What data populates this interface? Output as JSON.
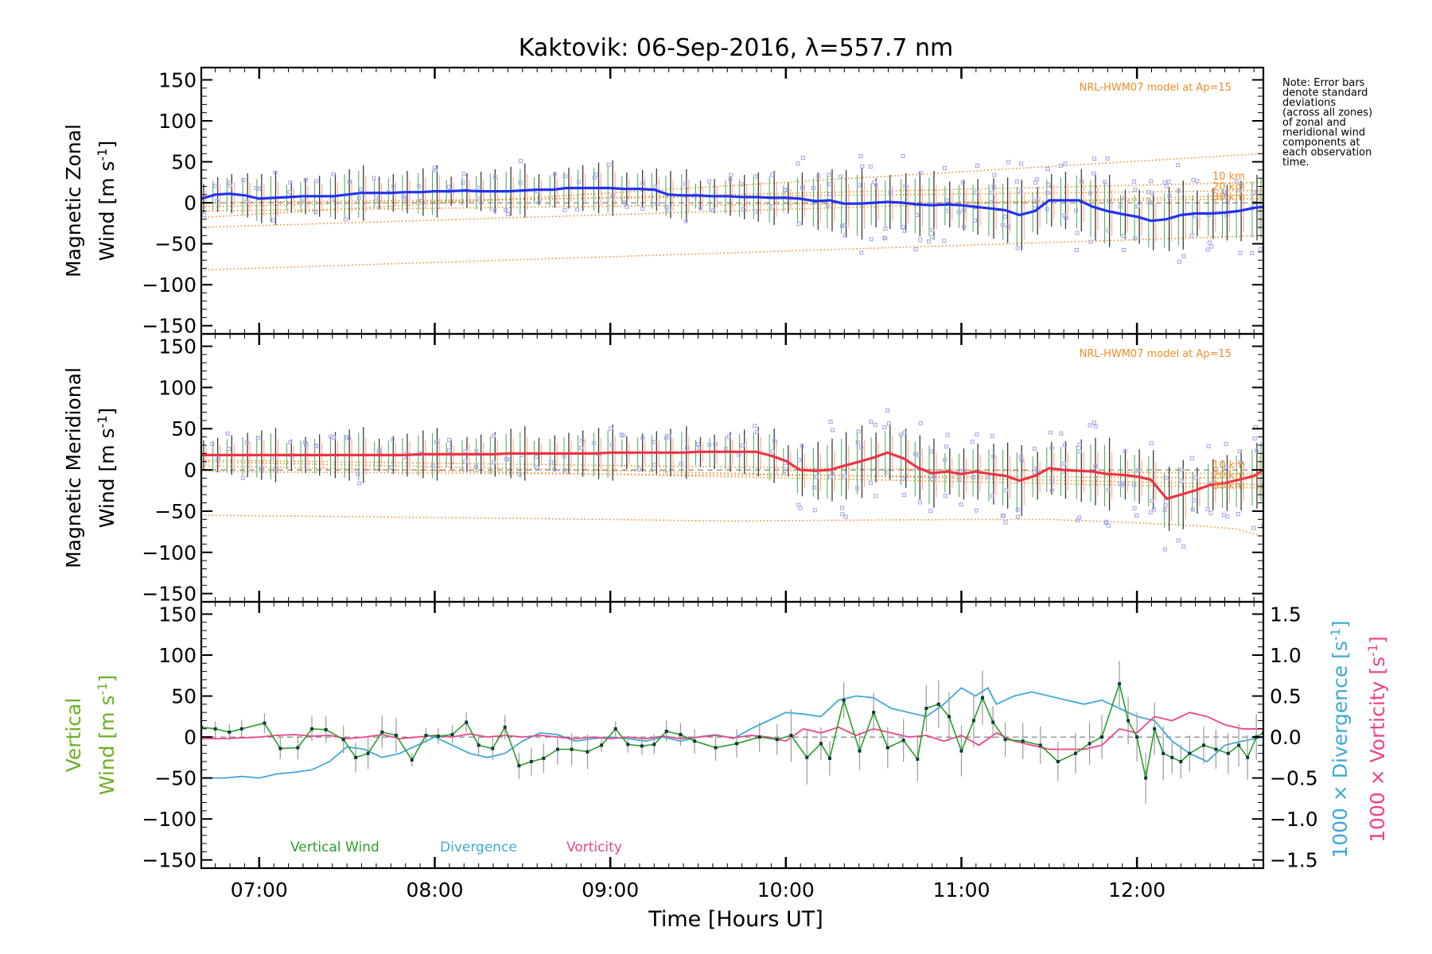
{
  "colors": {
    "zonal_line": "#2233ee",
    "meridional_line": "#ee3344",
    "model": "#f28c28",
    "vertical": "#2a9d2a",
    "vertical_label": "#6ab023",
    "divergence": "#40a8d8",
    "vorticity": "#ee4488",
    "samples": "#a9a9e8",
    "error_bar": "#3a3a3a"
  },
  "chart_data": {
    "type": "line",
    "title": "Kaktovik: 06-Sep-2016, λ=557.7 nm",
    "xlabel": "Time [Hours UT]",
    "x_unit": "hours UT",
    "x_ticks": [
      "07:00",
      "08:00",
      "09:00",
      "10:00",
      "11:00",
      "12:00"
    ],
    "x_tick_values": [
      7,
      8,
      9,
      10,
      11,
      12
    ],
    "xlim": [
      6.67,
      12.72
    ],
    "note": "Note: Error bars denote standard deviations (across all zones) of zonal and meridional wind components at each observation time.",
    "note_lines": [
      "Note: Error bars",
      "denote standard",
      "deviations",
      "(across all zones)",
      "of zonal and",
      "meridional wind",
      "components at",
      "each observation",
      "time."
    ],
    "panels": [
      {
        "ylabel_line1": "Magnetic Zonal",
        "ylabel_line2": "Wind [m s",
        "ylabel_sup": "-1",
        "ylabel_close": "]",
        "ylim": [
          -160,
          165
        ],
        "y_ticks": [
          "150",
          "100",
          "50",
          "0",
          "−50",
          "−100",
          "−150"
        ],
        "y_tick_values": [
          150,
          100,
          50,
          0,
          -50,
          -100,
          -150
        ],
        "model_label": "NRL-HWM07 model at Ap=15",
        "altitude_labels": [
          "10 km",
          "20 km",
          "30 km"
        ],
        "series": [
          {
            "name": "Magnetic Zonal Wind",
            "x": [
              6.67,
              6.75,
              6.83,
              6.92,
              7.0,
              7.08,
              7.17,
              7.25,
              7.33,
              7.42,
              7.5,
              7.58,
              7.67,
              7.75,
              7.83,
              7.92,
              8.0,
              8.08,
              8.17,
              8.25,
              8.33,
              8.42,
              8.5,
              8.58,
              8.67,
              8.75,
              8.83,
              8.92,
              9.0,
              9.08,
              9.17,
              9.25,
              9.33,
              9.42,
              9.5,
              9.58,
              9.67,
              9.75,
              9.83,
              9.92,
              10.0,
              10.08,
              10.17,
              10.25,
              10.33,
              10.42,
              10.5,
              10.58,
              10.67,
              10.75,
              10.83,
              10.92,
              11.0,
              11.08,
              11.17,
              11.25,
              11.33,
              11.42,
              11.5,
              11.58,
              11.67,
              11.75,
              11.83,
              11.92,
              12.0,
              12.08,
              12.17,
              12.25,
              12.33,
              12.42,
              12.5,
              12.58,
              12.67,
              12.72
            ],
            "values": [
              5,
              10,
              11,
              9,
              5,
              6,
              7,
              8,
              8,
              8,
              10,
              12,
              12,
              12,
              13,
              13,
              14,
              14,
              15,
              14,
              14,
              14,
              15,
              16,
              16,
              18,
              18,
              18,
              18,
              17,
              17,
              16,
              10,
              9,
              9,
              8,
              8,
              7,
              7,
              6,
              6,
              5,
              2,
              3,
              -1,
              -1,
              0,
              1,
              0,
              -2,
              -3,
              -2,
              -3,
              -5,
              -7,
              -9,
              -15,
              -10,
              3,
              3,
              3,
              -5,
              -10,
              -14,
              -17,
              -22,
              -20,
              -15,
              -13,
              -13,
              -12,
              -10,
              -6,
              -5
            ]
          }
        ]
      },
      {
        "ylabel_line1": "Magnetic Meridional",
        "ylabel_line2": "Wind [m s",
        "ylabel_sup": "-1",
        "ylabel_close": "]",
        "ylim": [
          -160,
          165
        ],
        "y_ticks": [
          "150",
          "100",
          "50",
          "0",
          "−50",
          "−100",
          "−150"
        ],
        "y_tick_values": [
          150,
          100,
          50,
          0,
          -50,
          -100,
          -150
        ],
        "model_label": "NRL-HWM07 model at Ap=15",
        "altitude_labels": [
          "10 km",
          "20 km",
          "30 km"
        ],
        "series": [
          {
            "name": "Magnetic Meridional Wind",
            "x": [
              6.67,
              6.75,
              6.83,
              6.92,
              7.0,
              7.08,
              7.17,
              7.25,
              7.33,
              7.42,
              7.5,
              7.58,
              7.67,
              7.75,
              7.83,
              7.92,
              8.0,
              8.08,
              8.17,
              8.25,
              8.33,
              8.42,
              8.5,
              8.58,
              8.67,
              8.75,
              8.83,
              8.92,
              9.0,
              9.08,
              9.17,
              9.25,
              9.33,
              9.42,
              9.5,
              9.58,
              9.67,
              9.75,
              9.83,
              9.92,
              10.0,
              10.08,
              10.17,
              10.25,
              10.33,
              10.42,
              10.5,
              10.58,
              10.67,
              10.75,
              10.83,
              10.92,
              11.0,
              11.08,
              11.17,
              11.25,
              11.33,
              11.42,
              11.5,
              11.58,
              11.67,
              11.75,
              11.83,
              11.92,
              12.0,
              12.08,
              12.17,
              12.25,
              12.33,
              12.42,
              12.5,
              12.58,
              12.67,
              12.72
            ],
            "values": [
              18,
              18,
              18,
              18,
              18,
              18,
              18,
              18,
              18,
              18,
              18,
              18,
              18,
              18,
              18,
              19,
              19,
              19,
              19,
              19,
              19,
              20,
              20,
              20,
              20,
              20,
              20,
              20,
              21,
              21,
              21,
              21,
              21,
              21,
              22,
              22,
              22,
              22,
              22,
              17,
              11,
              0,
              -1,
              0,
              5,
              10,
              15,
              21,
              14,
              3,
              -4,
              -2,
              -5,
              -2,
              -5,
              -7,
              -13,
              -7,
              2,
              0,
              -1,
              -2,
              -5,
              -6,
              -8,
              -12,
              -35,
              -30,
              -25,
              -18,
              -16,
              -12,
              -7,
              0
            ]
          }
        ]
      },
      {
        "ylabel_line1": "Vertical",
        "ylabel_line2": "Wind [m s",
        "ylabel_sup": "-1",
        "ylabel_close": "]",
        "ylim": [
          -160,
          165
        ],
        "y_ticks": [
          "150",
          "100",
          "50",
          "0",
          "−50",
          "−100",
          "−150"
        ],
        "y_tick_values": [
          150,
          100,
          50,
          0,
          -50,
          -100,
          -150
        ],
        "y2_ticks": [
          "1.5",
          "1.0",
          "0.5",
          "0.0",
          "−0.5",
          "−1.0",
          "−1.5"
        ],
        "y2_tick_values": [
          1.5,
          1.0,
          0.5,
          0.0,
          -0.5,
          -1.0,
          -1.5
        ],
        "y2_ylim": [
          -1.6,
          1.65
        ],
        "y2_label_divergence": "1000 × Divergence [s",
        "y2_label_vorticity": "1000 × Vorticity [s",
        "y2_label_sup": "-1",
        "y2_label_close": "]",
        "legend": [
          "Vertical Wind",
          "Divergence",
          "Vorticity"
        ],
        "series": [
          {
            "name": "Vertical Wind",
            "x": [
              6.67,
              6.75,
              6.83,
              6.9,
              7.03,
              7.12,
              7.22,
              7.3,
              7.38,
              7.48,
              7.55,
              7.62,
              7.7,
              7.78,
              7.87,
              7.95,
              8.02,
              8.1,
              8.18,
              8.25,
              8.33,
              8.4,
              8.48,
              8.55,
              8.62,
              8.7,
              8.78,
              8.87,
              8.95,
              9.03,
              9.1,
              9.18,
              9.25,
              9.32,
              9.4,
              9.48,
              9.6,
              9.72,
              9.85,
              9.95,
              10.03,
              10.12,
              10.2,
              10.25,
              10.33,
              10.42,
              10.5,
              10.58,
              10.67,
              10.75,
              10.8,
              10.87,
              10.93,
              11.0,
              11.07,
              11.12,
              11.18,
              11.25,
              11.35,
              11.45,
              11.55,
              11.65,
              11.73,
              11.8,
              11.9,
              11.95,
              12.0,
              12.05,
              12.1,
              12.15,
              12.2,
              12.25,
              12.3,
              12.38,
              12.45,
              12.52,
              12.58,
              12.63,
              12.68,
              12.72
            ],
            "values": [
              12,
              10,
              6,
              10,
              17,
              -14,
              -13,
              10,
              9,
              -3,
              -25,
              -20,
              6,
              2,
              -28,
              2,
              1,
              3,
              18,
              -10,
              -14,
              12,
              -35,
              -30,
              -26,
              -15,
              -15,
              -18,
              -10,
              10,
              -9,
              -11,
              -9,
              7,
              3,
              -5,
              -13,
              -8,
              0,
              -3,
              2,
              -25,
              -8,
              -26,
              45,
              -17,
              30,
              -13,
              -4,
              -27,
              35,
              40,
              25,
              -17,
              20,
              48,
              18,
              -3,
              -5,
              -10,
              -30,
              -20,
              -8,
              0,
              65,
              20,
              0,
              -50,
              10,
              -20,
              -25,
              -30,
              -20,
              -10,
              -15,
              -20,
              -10,
              -25,
              0,
              5
            ]
          },
          {
            "name": "Divergence",
            "axis": "right",
            "x": [
              6.67,
              6.8,
              6.9,
              7.0,
              7.1,
              7.2,
              7.3,
              7.4,
              7.5,
              7.6,
              7.7,
              7.8,
              7.9,
              8.0,
              8.1,
              8.2,
              8.3,
              8.4,
              8.5,
              8.6,
              8.7,
              8.8,
              8.9,
              9.0,
              9.1,
              9.2,
              9.3,
              9.4,
              9.5,
              9.6,
              9.7,
              9.8,
              9.9,
              10.0,
              10.1,
              10.2,
              10.3,
              10.4,
              10.5,
              10.6,
              10.7,
              10.8,
              10.9,
              11.0,
              11.08,
              11.15,
              11.2,
              11.3,
              11.4,
              11.5,
              11.6,
              11.7,
              11.8,
              11.9,
              12.0,
              12.1,
              12.2,
              12.3,
              12.4,
              12.5,
              12.6,
              12.72
            ],
            "values": [
              -0.5,
              -0.5,
              -0.48,
              -0.5,
              -0.45,
              -0.43,
              -0.4,
              -0.3,
              -0.12,
              -0.15,
              -0.25,
              -0.2,
              -0.1,
              0.0,
              -0.1,
              -0.2,
              -0.25,
              -0.2,
              -0.05,
              0.05,
              0.03,
              -0.05,
              -0.02,
              0.0,
              -0.02,
              -0.05,
              0.0,
              -0.05,
              0.0,
              0.03,
              -0.02,
              0.1,
              0.2,
              0.3,
              0.28,
              0.25,
              0.45,
              0.5,
              0.48,
              0.35,
              0.3,
              0.25,
              0.4,
              0.6,
              0.5,
              0.6,
              0.4,
              0.5,
              0.55,
              0.5,
              0.45,
              0.4,
              0.45,
              0.35,
              0.25,
              0.2,
              -0.05,
              -0.2,
              -0.3,
              -0.1,
              -0.05,
              0.0
            ]
          },
          {
            "name": "Vorticity",
            "axis": "right",
            "x": [
              6.67,
              6.8,
              6.9,
              7.0,
              7.1,
              7.2,
              7.3,
              7.4,
              7.5,
              7.6,
              7.7,
              7.8,
              7.9,
              8.0,
              8.1,
              8.2,
              8.3,
              8.4,
              8.5,
              8.6,
              8.7,
              8.8,
              8.9,
              9.0,
              9.1,
              9.2,
              9.3,
              9.4,
              9.5,
              9.6,
              9.7,
              9.8,
              9.9,
              10.0,
              10.1,
              10.2,
              10.3,
              10.4,
              10.5,
              10.6,
              10.7,
              10.8,
              10.9,
              11.0,
              11.1,
              11.2,
              11.3,
              11.4,
              11.5,
              11.6,
              11.7,
              11.8,
              11.9,
              12.0,
              12.1,
              12.2,
              12.3,
              12.4,
              12.5,
              12.6,
              12.72
            ],
            "values": [
              -0.02,
              -0.02,
              -0.01,
              0.0,
              0.02,
              0.03,
              0.01,
              0.02,
              -0.02,
              0.0,
              0.03,
              -0.02,
              0.0,
              0.02,
              0.0,
              0.04,
              0.0,
              0.02,
              0.0,
              0.02,
              0.0,
              -0.02,
              0.0,
              -0.02,
              0.0,
              -0.02,
              0.01,
              -0.02,
              0.0,
              0.02,
              -0.01,
              0.02,
              0.0,
              -0.05,
              0.1,
              0.05,
              0.12,
              0.02,
              0.1,
              0.05,
              0.0,
              0.02,
              -0.05,
              0.02,
              -0.1,
              0.05,
              -0.05,
              -0.1,
              -0.15,
              -0.15,
              -0.15,
              -0.1,
              0.1,
              0.05,
              0.25,
              0.2,
              0.3,
              0.25,
              0.15,
              0.1,
              0.1
            ]
          }
        ]
      }
    ]
  }
}
